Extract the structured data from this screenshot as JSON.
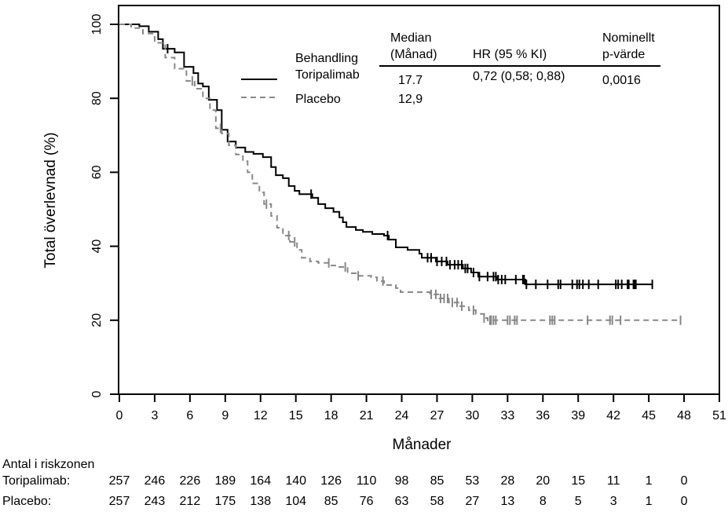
{
  "chart_data": {
    "type": "line",
    "title": "",
    "xlabel": "Månader",
    "ylabel": "Total överlevnad (%)",
    "xlim": [
      0,
      51
    ],
    "ylim": [
      0,
      100
    ],
    "x_ticks": [
      0,
      3,
      6,
      9,
      12,
      15,
      18,
      21,
      24,
      27,
      30,
      33,
      36,
      39,
      42,
      45,
      48,
      51
    ],
    "y_ticks": [
      0,
      20,
      40,
      60,
      80,
      100
    ],
    "grid": false,
    "legend": {
      "position": "top-right",
      "header": "Behandling",
      "columns": {
        "median": "Median\n(Månad)",
        "median_line1": "Median",
        "median_line2": "(Månad)",
        "hr": "HR (95 % KI)",
        "p_line1": "Nominellt",
        "p_line2": "p-värde"
      },
      "entries": [
        {
          "name": "Toripalimab",
          "style": "solid",
          "color": "#000000",
          "median": "17.7",
          "hr": "0,72 (0,58; 0,88)",
          "p": "0,0016"
        },
        {
          "name": "Placebo",
          "style": "dashed",
          "color": "#888888",
          "median": "12,9",
          "hr": "",
          "p": ""
        }
      ]
    },
    "series": [
      {
        "name": "Toripalimab",
        "color": "#000000",
        "style": "solid",
        "points": [
          [
            0,
            100
          ],
          [
            1.7,
            99.5
          ],
          [
            2.5,
            98
          ],
          [
            3.3,
            96
          ],
          [
            3.7,
            93.4
          ],
          [
            4.7,
            92.4
          ],
          [
            5.5,
            88.5
          ],
          [
            6.3,
            86.8
          ],
          [
            6.7,
            84
          ],
          [
            7.1,
            83.2
          ],
          [
            7.6,
            79.6
          ],
          [
            8.3,
            76.8
          ],
          [
            8.7,
            71.5
          ],
          [
            9.2,
            68.3
          ],
          [
            9.9,
            66.7
          ],
          [
            10.7,
            65.5
          ],
          [
            11.4,
            65
          ],
          [
            12.2,
            64.1
          ],
          [
            12.9,
            61.4
          ],
          [
            13.3,
            59.2
          ],
          [
            13.9,
            58.4
          ],
          [
            14.4,
            56.3
          ],
          [
            14.9,
            55
          ],
          [
            15.3,
            54.1
          ],
          [
            16.1,
            54.1
          ],
          [
            16.4,
            53.1
          ],
          [
            16.9,
            51.4
          ],
          [
            17.5,
            50.3
          ],
          [
            18.2,
            49.3
          ],
          [
            18.7,
            47.8
          ],
          [
            19.0,
            46.5
          ],
          [
            19.3,
            45.2
          ],
          [
            20.1,
            44.4
          ],
          [
            20.7,
            43.9
          ],
          [
            21.5,
            43.3
          ],
          [
            22.5,
            42.9
          ],
          [
            22.9,
            41.8
          ],
          [
            23.5,
            39.7
          ],
          [
            24.5,
            39
          ],
          [
            25.5,
            38
          ],
          [
            25.7,
            36.9
          ],
          [
            26.9,
            35.9
          ],
          [
            27.9,
            35
          ],
          [
            29.2,
            34
          ],
          [
            29.9,
            32.9
          ],
          [
            30.5,
            31.8
          ],
          [
            31.5,
            31.8
          ],
          [
            32.1,
            31
          ],
          [
            33.9,
            31
          ],
          [
            34.5,
            29.7
          ],
          [
            45.3,
            29.7
          ]
        ],
        "censored": [
          4.1,
          16.3,
          22.8,
          26.2,
          26.5,
          27.0,
          27.4,
          27.8,
          28.1,
          28.5,
          28.8,
          29.1,
          29.4,
          29.6,
          30.1,
          30.6,
          31.3,
          31.8,
          32.0,
          32.2,
          32.5,
          32.8,
          33.7,
          34.3,
          34.4,
          34.6,
          35.4,
          36.4,
          37.3,
          37.5,
          38.5,
          38.9,
          39.1,
          39.4,
          39.9,
          40.7,
          42.2,
          42.4,
          42.7,
          43.2,
          43.3,
          43.7,
          43.8,
          43.9,
          45.3
        ]
      },
      {
        "name": "Placebo",
        "color": "#888888",
        "style": "dashed",
        "points": [
          [
            0,
            100
          ],
          [
            1.0,
            99
          ],
          [
            2.0,
            97.5
          ],
          [
            3.0,
            95
          ],
          [
            3.9,
            91
          ],
          [
            4.7,
            88
          ],
          [
            5.7,
            84.7
          ],
          [
            6.4,
            82.6
          ],
          [
            7.1,
            80
          ],
          [
            7.7,
            76.8
          ],
          [
            8.2,
            71.9
          ],
          [
            8.7,
            70.5
          ],
          [
            9.3,
            67.3
          ],
          [
            9.9,
            64.8
          ],
          [
            10.5,
            63
          ],
          [
            10.9,
            60
          ],
          [
            11.3,
            57
          ],
          [
            11.9,
            54.6
          ],
          [
            12.3,
            51.4
          ],
          [
            12.9,
            48.2
          ],
          [
            13.4,
            45
          ],
          [
            13.9,
            42.9
          ],
          [
            14.5,
            41.2
          ],
          [
            15.1,
            39
          ],
          [
            15.5,
            36.9
          ],
          [
            16.2,
            35.9
          ],
          [
            16.9,
            35.5
          ],
          [
            17.9,
            34.8
          ],
          [
            18.7,
            34.4
          ],
          [
            19.4,
            32.7
          ],
          [
            20.2,
            32
          ],
          [
            21.4,
            31.6
          ],
          [
            21.9,
            30.6
          ],
          [
            22.5,
            29.5
          ],
          [
            23.5,
            28.7
          ],
          [
            23.9,
            27.6
          ],
          [
            26.4,
            27
          ],
          [
            27.2,
            25.9
          ],
          [
            28.0,
            24.8
          ],
          [
            28.9,
            23.8
          ],
          [
            29.7,
            22.7
          ],
          [
            30.3,
            21.7
          ],
          [
            31.0,
            20.6
          ],
          [
            31.3,
            20
          ],
          [
            47.7,
            20
          ]
        ],
        "censored": [
          6.2,
          8.6,
          12.5,
          14.4,
          14.9,
          17.8,
          19.2,
          20.3,
          22.4,
          26.5,
          26.9,
          27.3,
          27.6,
          27.9,
          28.3,
          28.7,
          29.1,
          30.1,
          31.0,
          31.5,
          31.6,
          31.8,
          32.0,
          33.0,
          33.2,
          33.6,
          33.8,
          36.6,
          36.8,
          37.0,
          39.8,
          41.7,
          41.9,
          42.6,
          47.7
        ]
      }
    ],
    "risk_table": {
      "title": "Antal i riskzonen",
      "times": [
        0,
        3,
        6,
        9,
        12,
        15,
        18,
        21,
        24,
        27,
        30,
        33,
        36,
        39,
        42,
        45,
        48
      ],
      "rows": [
        {
          "label": "Toripalimab:",
          "values": [
            257,
            246,
            226,
            189,
            164,
            140,
            126,
            110,
            98,
            85,
            53,
            28,
            20,
            15,
            11,
            1,
            0
          ]
        },
        {
          "label": "Placebo:",
          "values": [
            257,
            243,
            212,
            175,
            138,
            104,
            85,
            76,
            63,
            58,
            27,
            13,
            8,
            5,
            3,
            1,
            0
          ]
        }
      ]
    }
  }
}
